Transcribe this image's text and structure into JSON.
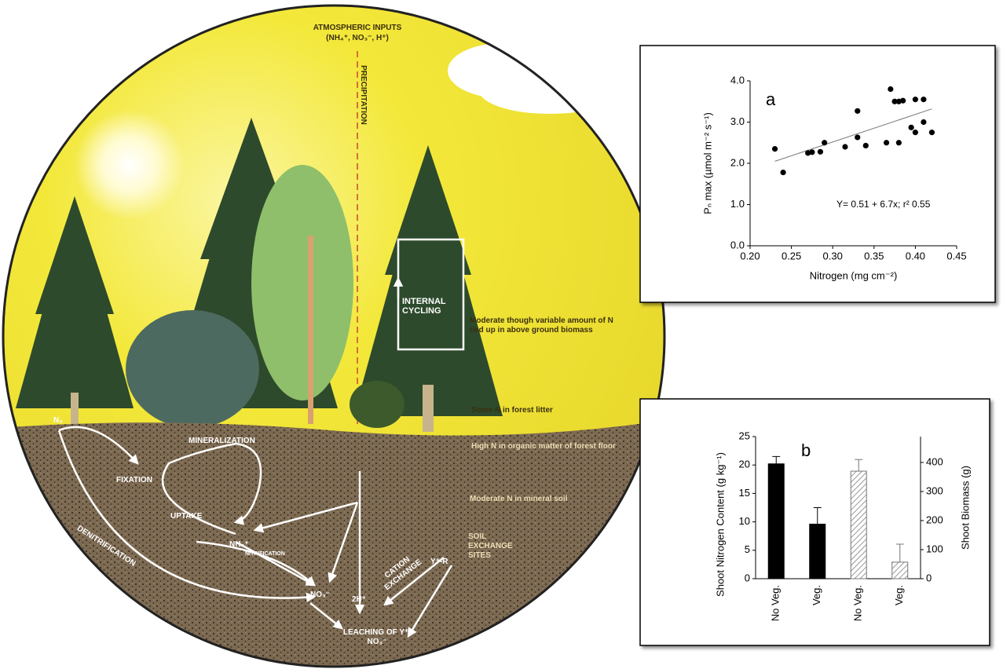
{
  "diagram": {
    "labels": [
      "ATMOSPHERIC INPUTS",
      "(NH₄⁺, NO₃⁻, H⁺)",
      "PRECIPITATION",
      "INTERNAL CYCLING",
      "Moderate though variable amount of N tied up in above ground biomass",
      "Some N in forest litter",
      "High N in organic matter of forest floor",
      "Moderate N in mineral soil",
      "SOIL EXCHANGE SITES",
      "N₂",
      "FIXATION",
      "MINERALIZATION",
      "UPTAKE",
      "NH₄⁺",
      "NITRIFICATION",
      "CATION EXCHANGE",
      "Y⁺-R",
      "NO₃⁻",
      "2H⁺",
      "DENITRIFICATION",
      "LEACHING OF Y⁺, NO₃⁻"
    ]
  },
  "chart_data": [
    {
      "type": "scatter",
      "annotation": "a",
      "equation": "Y= 0.51 + 6.7x; r² 0.55",
      "x_label": "Nitrogen (mg cm⁻²)",
      "y_label": "Pₙ max (µmol m⁻² s⁻¹)",
      "x": [
        0.23,
        0.24,
        0.27,
        0.275,
        0.285,
        0.29,
        0.315,
        0.33,
        0.33,
        0.34,
        0.365,
        0.37,
        0.375,
        0.38,
        0.38,
        0.385,
        0.395,
        0.4,
        0.4,
        0.41,
        0.41,
        0.42
      ],
      "values": [
        2.35,
        1.78,
        2.25,
        2.27,
        2.28,
        2.5,
        2.4,
        3.27,
        2.63,
        2.43,
        2.5,
        3.8,
        3.5,
        3.5,
        2.5,
        3.52,
        2.87,
        3.55,
        2.75,
        3.55,
        3.0,
        2.75
      ],
      "color": "#000000",
      "trendline": {
        "x": [
          0.23,
          0.42
        ],
        "values": [
          2.05,
          3.32
        ]
      },
      "xlim": [
        0.2,
        0.45
      ],
      "xticks": [
        {
          "value": 0.2,
          "label": "0.20"
        },
        0.25,
        {
          "value": 0.3,
          "label": "0.30"
        },
        0.35,
        {
          "value": 0.4,
          "label": "0.40"
        },
        0.45
      ],
      "ylim": [
        0,
        4
      ],
      "yticks": [
        {
          "value": 0,
          "label": "0.0"
        },
        {
          "value": 1,
          "label": "1.0"
        },
        {
          "value": 2,
          "label": "2.0"
        },
        {
          "value": 3,
          "label": "3.0"
        },
        {
          "value": 4,
          "label": "4.0"
        }
      ]
    },
    {
      "type": "bar",
      "annotation": "b",
      "y_label": "Shoot Nitrogen Content (g kg⁻¹)",
      "y2_label": "Shoot Biomass (g)",
      "categories": [
        "No Veg.",
        "Veg.",
        "No Veg.",
        "Veg."
      ],
      "series": [
        {
          "color": "#000000",
          "values": [
            20.2,
            9.6,
            null,
            null
          ],
          "errors": [
            1.3,
            2.9,
            null,
            null
          ]
        },
        {
          "color": "#777777",
          "axis": "y2",
          "hatch": true,
          "values": [
            null,
            null,
            370,
            57
          ],
          "errors": [
            null,
            null,
            40,
            62
          ]
        }
      ],
      "ylim": [
        0,
        25
      ],
      "yticks": [
        0,
        5,
        10,
        15,
        20,
        25
      ],
      "y2lim": [
        0,
        489
      ],
      "y2ticks": [
        0,
        100,
        200,
        300,
        400
      ]
    }
  ]
}
